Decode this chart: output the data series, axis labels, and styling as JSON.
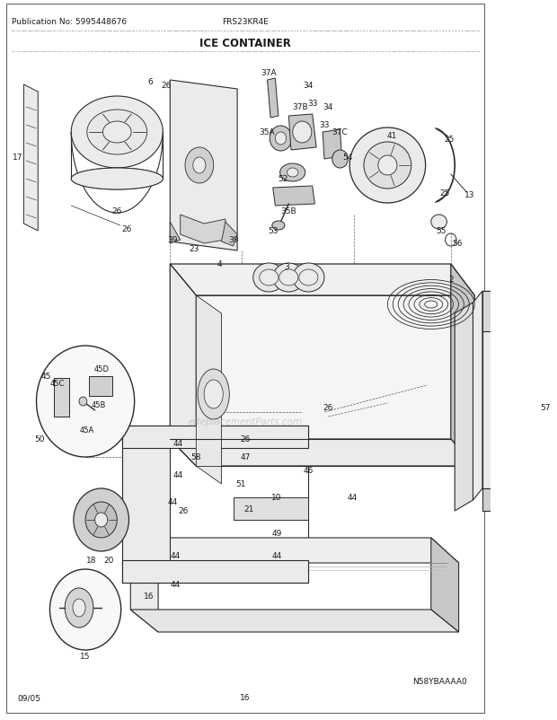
{
  "title": "ICE CONTAINER",
  "pub_no": "Publication No: 5995448676",
  "model": "FRS23KR4E",
  "date": "09/05",
  "page": "16",
  "diagram_code": "N58YBAAAA0",
  "bg_color": "#ffffff",
  "line_color": "#2a2a2a",
  "text_color": "#1a1a1a",
  "watermark_color": "#bbbbbb",
  "title_fontsize": 8.5,
  "label_fontsize": 6.5,
  "header_fontsize": 6.5,
  "figsize": [
    6.2,
    8.03
  ],
  "dpi": 100
}
